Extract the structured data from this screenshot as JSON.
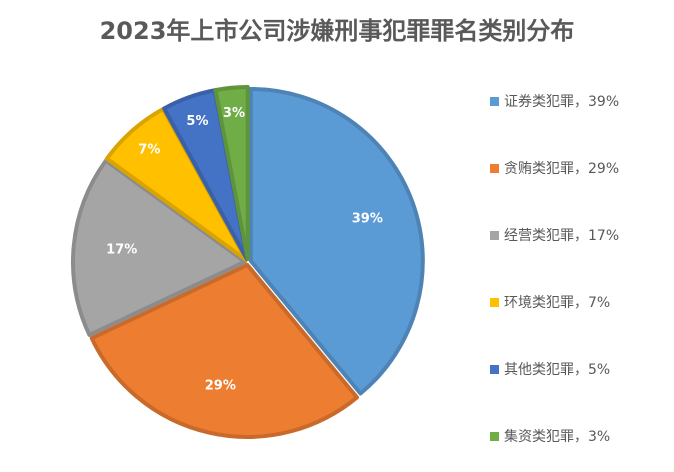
{
  "chart_data": {
    "type": "pie",
    "title": "2023年上市公司涉嫌刑事犯罪罪名类别分布",
    "categories": [
      "证券类犯罪，39%",
      "贪贿类犯罪，29%",
      "经营类犯罪，17%",
      "环境类犯罪，7%",
      "其他类犯罪，5%",
      "集资类犯罪，3%"
    ],
    "values": [
      39,
      29,
      17,
      7,
      5,
      3
    ],
    "value_labels": [
      "39%",
      "29%",
      "17%",
      "7%",
      "5%",
      "3%"
    ],
    "colors": [
      "#5b9bd5",
      "#ed7d31",
      "#a5a5a5",
      "#ffc000",
      "#4472c4",
      "#70ad47"
    ],
    "legend": "right"
  }
}
